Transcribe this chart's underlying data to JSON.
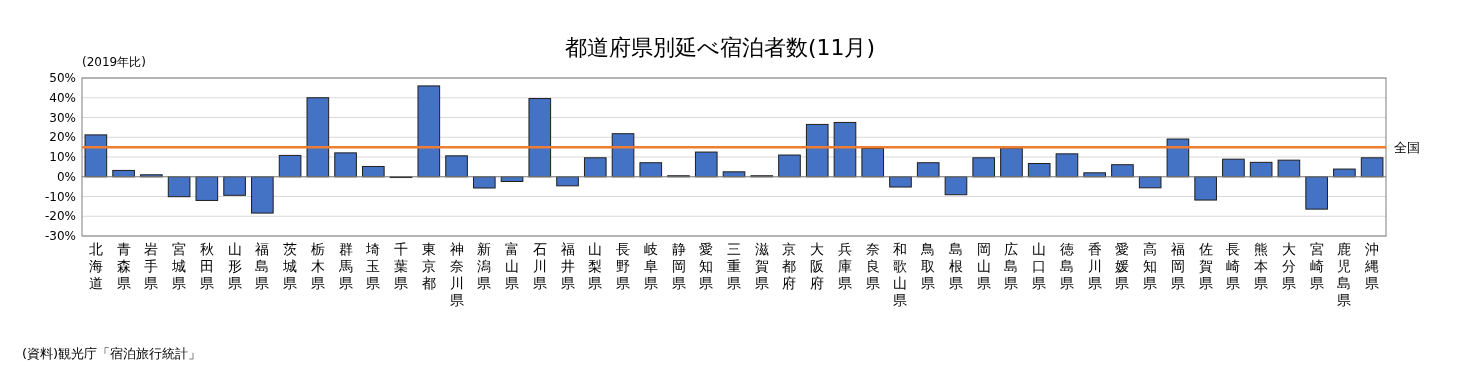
{
  "chart_data": {
    "type": "bar",
    "title": "都道府県別延べ宿泊者数(11月)",
    "ylabel": "(2019年比)",
    "annotations": [
      "(資料)観光庁「宿泊旅行統計」"
    ],
    "categories": [
      "北海道",
      "青森県",
      "岩手県",
      "宮城県",
      "秋田県",
      "山形県",
      "福島県",
      "茨城県",
      "栃木県",
      "群馬県",
      "埼玉県",
      "千葉県",
      "東京都",
      "神奈川県",
      "新潟県",
      "富山県",
      "石川県",
      "福井県",
      "山梨県",
      "長野県",
      "岐阜県",
      "静岡県",
      "愛知県",
      "三重県",
      "滋賀県",
      "京都府",
      "大阪府",
      "兵庫県",
      "奈良県",
      "和歌山県",
      "鳥取県",
      "島根県",
      "岡山県",
      "広島県",
      "山口県",
      "徳島県",
      "香川県",
      "愛媛県",
      "高知県",
      "福岡県",
      "佐賀県",
      "長崎県",
      "熊本県",
      "大分県",
      "宮崎県",
      "鹿児島県",
      "沖縄県"
    ],
    "values": [
      21.2,
      3.2,
      1.0,
      -10.1,
      -12.0,
      -9.4,
      -18.4,
      10.8,
      40.0,
      12.1,
      5.2,
      -0.3,
      46.0,
      10.6,
      -5.7,
      -2.4,
      39.6,
      -4.6,
      9.6,
      21.8,
      7.1,
      0.5,
      12.5,
      2.5,
      0.5,
      11.0,
      26.5,
      27.5,
      14.3,
      -5.2,
      7.1,
      -9.1,
      9.6,
      14.5,
      6.7,
      11.6,
      2.0,
      6.1,
      -5.6,
      19.1,
      -11.8,
      8.9,
      7.3,
      8.4,
      -16.4,
      3.9,
      9.6
    ],
    "color": "#4472c4",
    "ylim": [
      -30,
      50
    ],
    "yticks": [
      {
        "value": -30,
        "label": "-30%"
      },
      {
        "value": -20,
        "label": "-20%"
      },
      {
        "value": -10,
        "label": "-10%"
      },
      {
        "value": 0,
        "label": "0%"
      },
      {
        "value": 10,
        "label": "10%"
      },
      {
        "value": 20,
        "label": "20%"
      },
      {
        "value": 30,
        "label": "30%"
      },
      {
        "value": 40,
        "label": "40%"
      },
      {
        "value": 50,
        "label": "50%"
      }
    ],
    "grid": "y",
    "ref_lines": [
      {
        "axis": "y",
        "value": 15,
        "label": "全国",
        "color": "#ed7d31"
      }
    ]
  }
}
